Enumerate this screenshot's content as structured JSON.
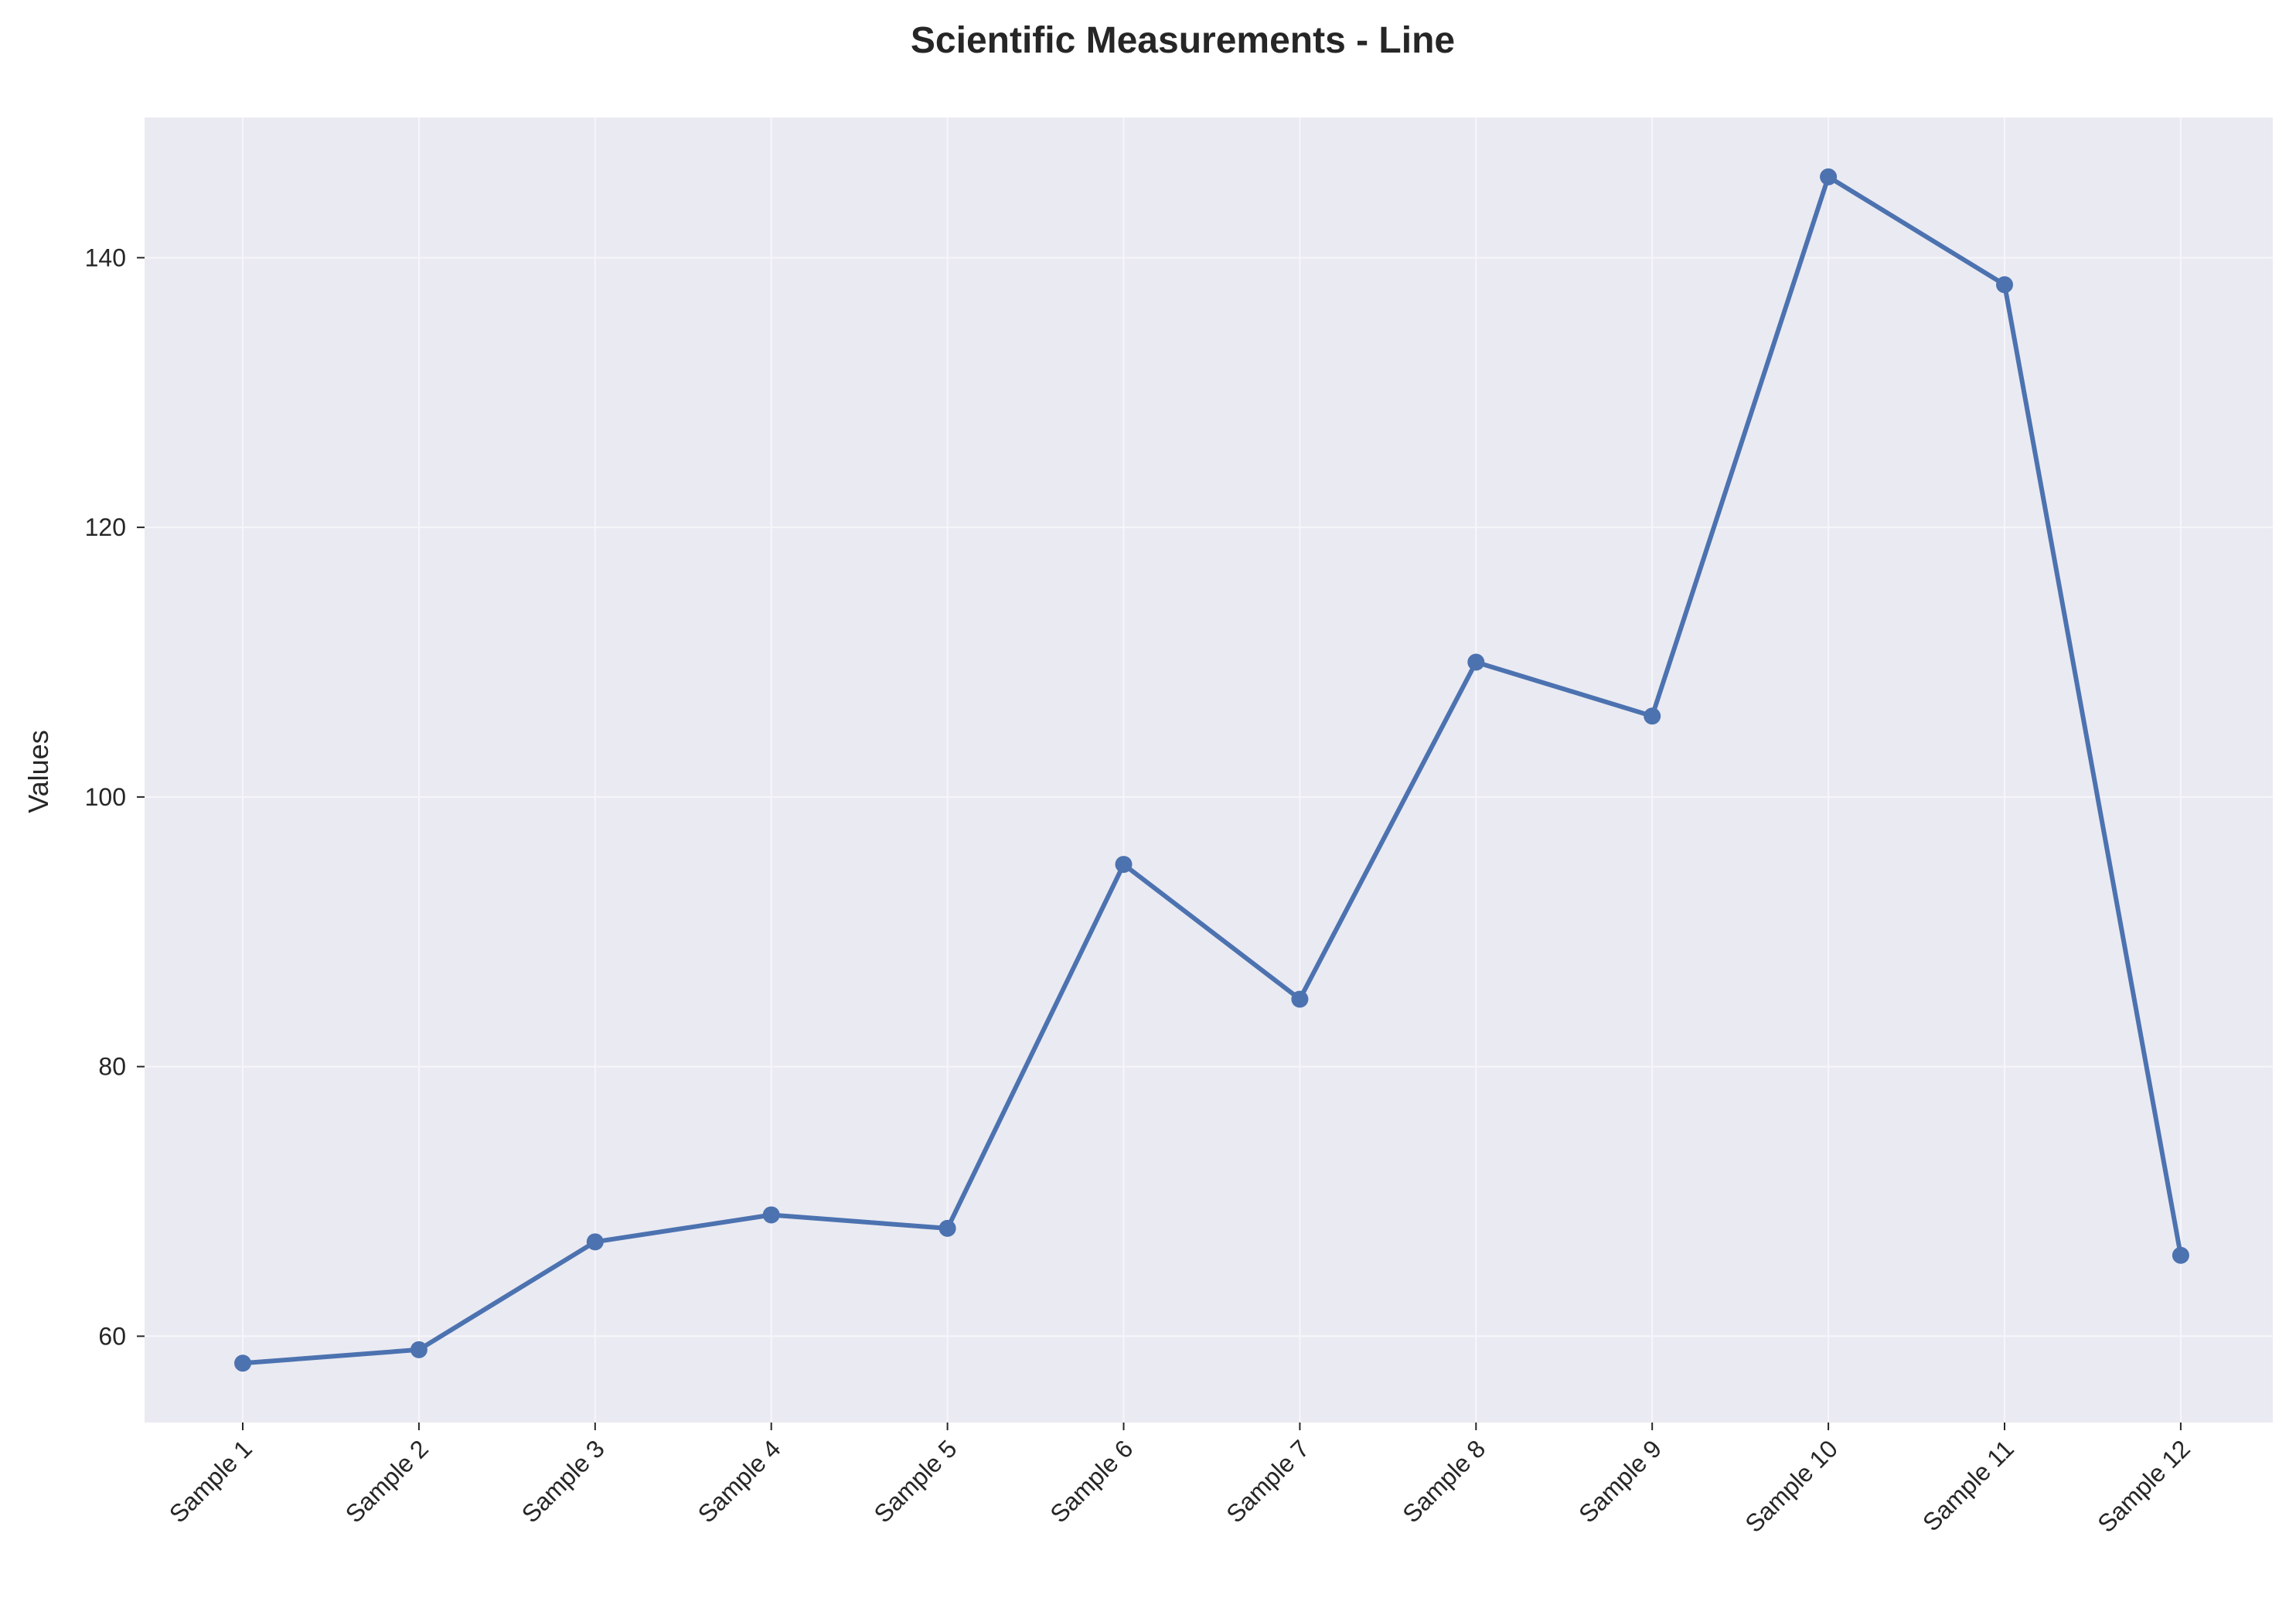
{
  "chart_data": {
    "type": "line",
    "title": "Scientific Measurements - Line",
    "xlabel": "",
    "ylabel": "Values",
    "categories": [
      "Sample 1",
      "Sample 2",
      "Sample 3",
      "Sample 4",
      "Sample 5",
      "Sample 6",
      "Sample 7",
      "Sample 8",
      "Sample 9",
      "Sample 10",
      "Sample 11",
      "Sample 12"
    ],
    "series": [
      {
        "values": [
          58,
          59,
          67,
          69,
          68,
          95,
          85,
          110,
          106,
          146,
          138,
          66
        ]
      }
    ],
    "ylim": [
      53.6,
      150.4
    ],
    "yticks": [
      60,
      80,
      100,
      120,
      140
    ],
    "grid": true,
    "colors": {
      "line": "#4c72b0",
      "plot_bg": "#eaeaf2",
      "grid": "#f6f6fa",
      "text": "#262626"
    }
  }
}
